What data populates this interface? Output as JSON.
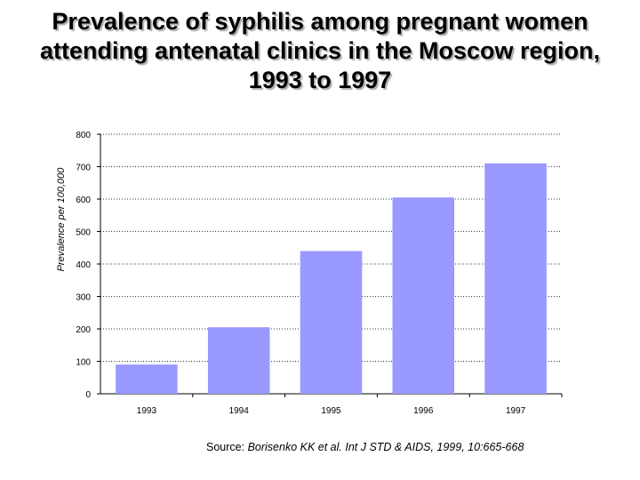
{
  "title": {
    "line1": "Prevalence of syphilis among pregnant women",
    "line2": "attending antenatal clinics in the Moscow region,",
    "line3": "1993 to 1997"
  },
  "source": {
    "label": "Source:",
    "citation": "Borisenko KK et al. Int J STD & AIDS, 1999, 10:665-668"
  },
  "colors": {
    "bar": "#9999ff",
    "grid": "#000000"
  },
  "chart_data": {
    "type": "bar",
    "title": "Prevalence of syphilis among pregnant women attending antenatal clinics in the Moscow region, 1993 to 1997",
    "xlabel": "",
    "ylabel": "Prevalence per 100,000",
    "categories": [
      "1993",
      "1994",
      "1995",
      "1996",
      "1997"
    ],
    "values": [
      90,
      205,
      440,
      605,
      710
    ],
    "ylim": [
      0,
      800
    ],
    "yticks": [
      0,
      100,
      200,
      300,
      400,
      500,
      600,
      700,
      800
    ],
    "grid": true,
    "grid_style": "dotted horizontal",
    "legend": "none"
  }
}
